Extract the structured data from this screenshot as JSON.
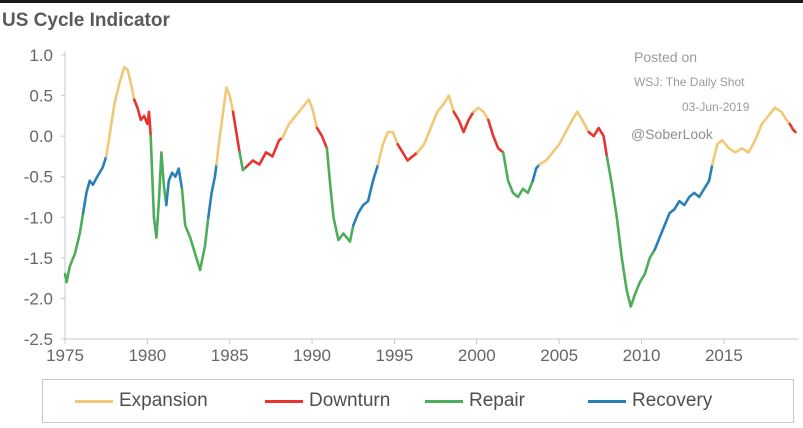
{
  "chart_data": {
    "type": "line",
    "title": "US Cycle Indicator",
    "xlabel": "",
    "ylabel": "",
    "xlim": [
      1975,
      2019.5
    ],
    "ylim": [
      -2.5,
      1.0
    ],
    "y_ticks": [
      "1.0",
      "0.5",
      "0.0",
      "-0.5",
      "-1.0",
      "-1.5",
      "-2.0",
      "-2.5"
    ],
    "x_ticks": [
      "1975",
      "1980",
      "1985",
      "1990",
      "1995",
      "2000",
      "2005",
      "2010",
      "2015"
    ],
    "grid": false,
    "legend_position": "bottom",
    "annotations": {
      "posted": "Posted on",
      "source": "WSJ: The Daily Shot",
      "date": "03-Jun-2019",
      "handle": "@SoberLook"
    },
    "phase_colors": {
      "Expansion": "#f0c878",
      "Downturn": "#e8332f",
      "Repair": "#4cae5a",
      "Recovery": "#2b7fb8"
    },
    "legend": [
      "Expansion",
      "Downturn",
      "Repair",
      "Recovery"
    ],
    "segments": [
      {
        "phase": "Repair",
        "points": [
          [
            1975.0,
            -1.7
          ],
          [
            1975.1,
            -1.8
          ],
          [
            1975.3,
            -1.6
          ],
          [
            1975.6,
            -1.45
          ],
          [
            1975.9,
            -1.2
          ],
          [
            1976.1,
            -0.95
          ]
        ]
      },
      {
        "phase": "Recovery",
        "points": [
          [
            1976.1,
            -0.95
          ],
          [
            1976.3,
            -0.7
          ],
          [
            1976.5,
            -0.55
          ],
          [
            1976.7,
            -0.6
          ],
          [
            1976.9,
            -0.52
          ],
          [
            1977.1,
            -0.45
          ],
          [
            1977.3,
            -0.38
          ],
          [
            1977.5,
            -0.25
          ]
        ]
      },
      {
        "phase": "Expansion",
        "points": [
          [
            1977.5,
            -0.25
          ],
          [
            1977.7,
            0.0
          ],
          [
            1978.0,
            0.4
          ],
          [
            1978.3,
            0.65
          ],
          [
            1978.6,
            0.85
          ],
          [
            1978.8,
            0.82
          ],
          [
            1979.0,
            0.65
          ],
          [
            1979.2,
            0.45
          ]
        ]
      },
      {
        "phase": "Downturn",
        "points": [
          [
            1979.2,
            0.45
          ],
          [
            1979.4,
            0.35
          ],
          [
            1979.6,
            0.2
          ],
          [
            1979.8,
            0.25
          ],
          [
            1980.0,
            0.15
          ],
          [
            1980.1,
            0.3
          ],
          [
            1980.2,
            0.0
          ]
        ]
      },
      {
        "phase": "Repair",
        "points": [
          [
            1980.2,
            0.0
          ],
          [
            1980.3,
            -0.5
          ],
          [
            1980.4,
            -1.0
          ],
          [
            1980.55,
            -1.25
          ],
          [
            1980.7,
            -0.8
          ],
          [
            1980.85,
            -0.2
          ],
          [
            1981.0,
            -0.6
          ],
          [
            1981.15,
            -0.85
          ]
        ]
      },
      {
        "phase": "Recovery",
        "points": [
          [
            1981.15,
            -0.85
          ],
          [
            1981.3,
            -0.55
          ],
          [
            1981.5,
            -0.45
          ],
          [
            1981.7,
            -0.5
          ],
          [
            1981.9,
            -0.4
          ],
          [
            1982.1,
            -0.65
          ]
        ]
      },
      {
        "phase": "Repair",
        "points": [
          [
            1982.1,
            -0.65
          ],
          [
            1982.3,
            -1.1
          ],
          [
            1982.6,
            -1.25
          ],
          [
            1982.9,
            -1.45
          ],
          [
            1983.2,
            -1.65
          ],
          [
            1983.5,
            -1.35
          ],
          [
            1983.7,
            -1.0
          ]
        ]
      },
      {
        "phase": "Recovery",
        "points": [
          [
            1983.7,
            -1.0
          ],
          [
            1983.9,
            -0.7
          ],
          [
            1984.1,
            -0.5
          ],
          [
            1984.2,
            -0.35
          ]
        ]
      },
      {
        "phase": "Expansion",
        "points": [
          [
            1984.2,
            -0.35
          ],
          [
            1984.4,
            0.0
          ],
          [
            1984.6,
            0.3
          ],
          [
            1984.8,
            0.6
          ],
          [
            1985.0,
            0.5
          ],
          [
            1985.2,
            0.3
          ]
        ]
      },
      {
        "phase": "Downturn",
        "points": [
          [
            1985.2,
            0.3
          ],
          [
            1985.4,
            0.05
          ],
          [
            1985.6,
            -0.2
          ]
        ]
      },
      {
        "phase": "Repair",
        "points": [
          [
            1985.6,
            -0.2
          ],
          [
            1985.8,
            -0.42
          ],
          [
            1986.0,
            -0.38
          ]
        ]
      },
      {
        "phase": "Downturn",
        "points": [
          [
            1986.0,
            -0.38
          ],
          [
            1986.4,
            -0.3
          ],
          [
            1986.8,
            -0.35
          ],
          [
            1987.2,
            -0.2
          ],
          [
            1987.6,
            -0.25
          ],
          [
            1988.0,
            -0.05
          ],
          [
            1988.2,
            -0.02
          ]
        ]
      },
      {
        "phase": "Expansion",
        "points": [
          [
            1988.2,
            -0.02
          ],
          [
            1988.6,
            0.15
          ],
          [
            1989.0,
            0.25
          ],
          [
            1989.4,
            0.35
          ],
          [
            1989.8,
            0.45
          ],
          [
            1990.0,
            0.35
          ],
          [
            1990.3,
            0.1
          ]
        ]
      },
      {
        "phase": "Downturn",
        "points": [
          [
            1990.3,
            0.1
          ],
          [
            1990.6,
            0.0
          ],
          [
            1990.9,
            -0.15
          ]
        ]
      },
      {
        "phase": "Repair",
        "points": [
          [
            1990.9,
            -0.15
          ],
          [
            1991.1,
            -0.6
          ],
          [
            1991.3,
            -1.0
          ],
          [
            1991.6,
            -1.28
          ],
          [
            1991.9,
            -1.2
          ],
          [
            1992.1,
            -1.25
          ],
          [
            1992.3,
            -1.3
          ],
          [
            1992.5,
            -1.1
          ]
        ]
      },
      {
        "phase": "Recovery",
        "points": [
          [
            1992.5,
            -1.1
          ],
          [
            1992.8,
            -0.95
          ],
          [
            1993.1,
            -0.85
          ],
          [
            1993.4,
            -0.8
          ],
          [
            1993.7,
            -0.55
          ],
          [
            1994.0,
            -0.35
          ]
        ]
      },
      {
        "phase": "Expansion",
        "points": [
          [
            1994.0,
            -0.35
          ],
          [
            1994.3,
            -0.1
          ],
          [
            1994.6,
            0.05
          ],
          [
            1994.9,
            0.05
          ],
          [
            1995.2,
            -0.1
          ]
        ]
      },
      {
        "phase": "Downturn",
        "points": [
          [
            1995.2,
            -0.1
          ],
          [
            1995.5,
            -0.2
          ],
          [
            1995.8,
            -0.3
          ],
          [
            1996.1,
            -0.25
          ],
          [
            1996.4,
            -0.2
          ]
        ]
      },
      {
        "phase": "Expansion",
        "points": [
          [
            1996.4,
            -0.2
          ],
          [
            1996.8,
            -0.1
          ],
          [
            1997.2,
            0.1
          ],
          [
            1997.6,
            0.3
          ],
          [
            1998.0,
            0.4
          ],
          [
            1998.3,
            0.5
          ],
          [
            1998.6,
            0.3
          ]
        ]
      },
      {
        "phase": "Downturn",
        "points": [
          [
            1998.6,
            0.3
          ],
          [
            1998.9,
            0.2
          ],
          [
            1999.2,
            0.05
          ],
          [
            1999.5,
            0.2
          ],
          [
            1999.8,
            0.3
          ]
        ]
      },
      {
        "phase": "Expansion",
        "points": [
          [
            1999.8,
            0.3
          ],
          [
            2000.1,
            0.35
          ],
          [
            2000.4,
            0.3
          ],
          [
            2000.7,
            0.2
          ]
        ]
      },
      {
        "phase": "Downturn",
        "points": [
          [
            2000.7,
            0.2
          ],
          [
            2001.0,
            0.0
          ],
          [
            2001.3,
            -0.15
          ],
          [
            2001.6,
            -0.2
          ]
        ]
      },
      {
        "phase": "Repair",
        "points": [
          [
            2001.6,
            -0.2
          ],
          [
            2001.9,
            -0.55
          ],
          [
            2002.2,
            -0.7
          ],
          [
            2002.5,
            -0.75
          ],
          [
            2002.8,
            -0.65
          ],
          [
            2003.1,
            -0.7
          ],
          [
            2003.4,
            -0.55
          ]
        ]
      },
      {
        "phase": "Recovery",
        "points": [
          [
            2003.4,
            -0.55
          ],
          [
            2003.6,
            -0.4
          ],
          [
            2003.8,
            -0.35
          ]
        ]
      },
      {
        "phase": "Expansion",
        "points": [
          [
            2003.8,
            -0.35
          ],
          [
            2004.2,
            -0.3
          ],
          [
            2004.6,
            -0.2
          ],
          [
            2005.0,
            -0.1
          ],
          [
            2005.4,
            0.05
          ],
          [
            2005.8,
            0.2
          ],
          [
            2006.1,
            0.3
          ],
          [
            2006.4,
            0.2
          ],
          [
            2006.8,
            0.05
          ]
        ]
      },
      {
        "phase": "Downturn",
        "points": [
          [
            2006.8,
            0.05
          ],
          [
            2007.1,
            0.0
          ],
          [
            2007.4,
            0.1
          ],
          [
            2007.7,
            0.0
          ],
          [
            2007.9,
            -0.25
          ]
        ]
      },
      {
        "phase": "Repair",
        "points": [
          [
            2007.9,
            -0.25
          ],
          [
            2008.2,
            -0.6
          ],
          [
            2008.5,
            -1.0
          ],
          [
            2008.8,
            -1.5
          ],
          [
            2009.1,
            -1.9
          ],
          [
            2009.35,
            -2.1
          ],
          [
            2009.6,
            -1.95
          ],
          [
            2009.9,
            -1.8
          ],
          [
            2010.2,
            -1.7
          ],
          [
            2010.5,
            -1.5
          ],
          [
            2010.8,
            -1.4
          ]
        ]
      },
      {
        "phase": "Recovery",
        "points": [
          [
            2010.8,
            -1.4
          ],
          [
            2011.1,
            -1.25
          ],
          [
            2011.4,
            -1.1
          ],
          [
            2011.7,
            -0.95
          ],
          [
            2012.0,
            -0.9
          ],
          [
            2012.3,
            -0.8
          ],
          [
            2012.6,
            -0.85
          ],
          [
            2012.9,
            -0.75
          ],
          [
            2013.2,
            -0.7
          ],
          [
            2013.5,
            -0.75
          ],
          [
            2013.8,
            -0.65
          ],
          [
            2014.1,
            -0.55
          ],
          [
            2014.3,
            -0.35
          ]
        ]
      },
      {
        "phase": "Expansion",
        "points": [
          [
            2014.3,
            -0.35
          ],
          [
            2014.6,
            -0.1
          ],
          [
            2014.9,
            -0.05
          ],
          [
            2015.3,
            -0.15
          ],
          [
            2015.7,
            -0.2
          ],
          [
            2016.1,
            -0.15
          ],
          [
            2016.5,
            -0.2
          ],
          [
            2016.9,
            -0.05
          ],
          [
            2017.3,
            0.15
          ],
          [
            2017.7,
            0.25
          ],
          [
            2018.1,
            0.35
          ],
          [
            2018.5,
            0.3
          ],
          [
            2018.8,
            0.2
          ],
          [
            2019.0,
            0.15
          ]
        ]
      },
      {
        "phase": "Downturn",
        "points": [
          [
            2019.0,
            0.15
          ],
          [
            2019.2,
            0.08
          ],
          [
            2019.35,
            0.05
          ]
        ]
      }
    ]
  }
}
